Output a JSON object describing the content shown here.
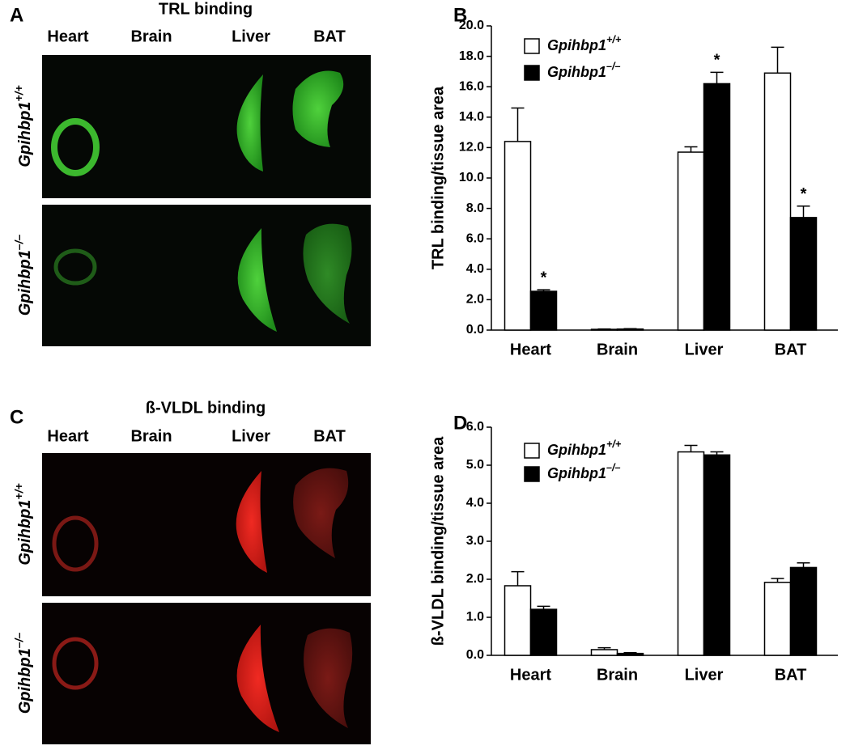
{
  "panels": [
    {
      "letter": "A",
      "title": "TRL binding",
      "columns": [
        "Heart",
        "Brain",
        "Liver",
        "BAT"
      ],
      "rows": [
        "Gpihbp1+/+",
        "Gpihbp1–/–"
      ]
    },
    {
      "letter": "C",
      "title": "ß-VLDL binding",
      "columns": [
        "Heart",
        "Brain",
        "Liver",
        "BAT"
      ],
      "rows": [
        "Gpihbp1+/+",
        "Gpihbp1–/–"
      ]
    }
  ],
  "chart_data": [
    {
      "type": "bar",
      "letter": "B",
      "y_label": "TRL binding/tissue area",
      "categories": [
        "Heart",
        "Brain",
        "Liver",
        "BAT"
      ],
      "series": [
        {
          "name": "Gpihbp1+/+",
          "color": "#ffffff",
          "values": [
            12.4,
            0.05,
            11.7,
            16.9
          ],
          "errors": [
            2.2,
            0.02,
            0.35,
            1.7
          ]
        },
        {
          "name": "Gpihbp1–/–",
          "color": "#000000",
          "values": [
            2.55,
            0.07,
            16.2,
            7.4
          ],
          "errors": [
            0.1,
            0.02,
            0.75,
            0.75
          ]
        }
      ],
      "annotations": [
        {
          "text": "*",
          "category": "Heart"
        },
        {
          "text": "*",
          "category": "Liver"
        },
        {
          "text": "*",
          "category": "BAT"
        }
      ],
      "ylim": [
        0,
        20
      ],
      "yticks": [
        {
          "value": 0,
          "label": "0.0"
        },
        {
          "value": 2,
          "label": "2.0"
        },
        {
          "value": 4,
          "label": "4.0"
        },
        {
          "value": 6,
          "label": "6.0"
        },
        {
          "value": 8,
          "label": "8.0"
        },
        {
          "value": 10,
          "label": "10.0"
        },
        {
          "value": 12,
          "label": "12.0"
        },
        {
          "value": 14,
          "label": "14.0"
        },
        {
          "value": 16,
          "label": "16.0"
        },
        {
          "value": 18,
          "label": "18.0"
        },
        {
          "value": 20,
          "label": "20.0"
        }
      ],
      "legend": "upper left"
    },
    {
      "type": "bar",
      "letter": "D",
      "y_label": "ß-VLDL binding/tissue area",
      "categories": [
        "Heart",
        "Brain",
        "Liver",
        "BAT"
      ],
      "series": [
        {
          "name": "Gpihbp1+/+",
          "color": "#ffffff",
          "values": [
            1.83,
            0.15,
            5.35,
            1.92
          ],
          "errors": [
            0.37,
            0.05,
            0.17,
            0.1
          ]
        },
        {
          "name": "Gpihbp1–/–",
          "color": "#000000",
          "values": [
            1.21,
            0.05,
            5.27,
            2.31
          ],
          "errors": [
            0.08,
            0.02,
            0.08,
            0.12
          ]
        }
      ],
      "ylim": [
        0,
        6
      ],
      "yticks": [
        {
          "value": 0,
          "label": "0.0"
        },
        {
          "value": 1,
          "label": "1.0"
        },
        {
          "value": 2,
          "label": "2.0"
        },
        {
          "value": 3,
          "label": "3.0"
        },
        {
          "value": 4,
          "label": "4.0"
        },
        {
          "value": 5,
          "label": "5.0"
        },
        {
          "value": 6,
          "label": "6.0"
        }
      ],
      "legend": "upper left"
    }
  ]
}
